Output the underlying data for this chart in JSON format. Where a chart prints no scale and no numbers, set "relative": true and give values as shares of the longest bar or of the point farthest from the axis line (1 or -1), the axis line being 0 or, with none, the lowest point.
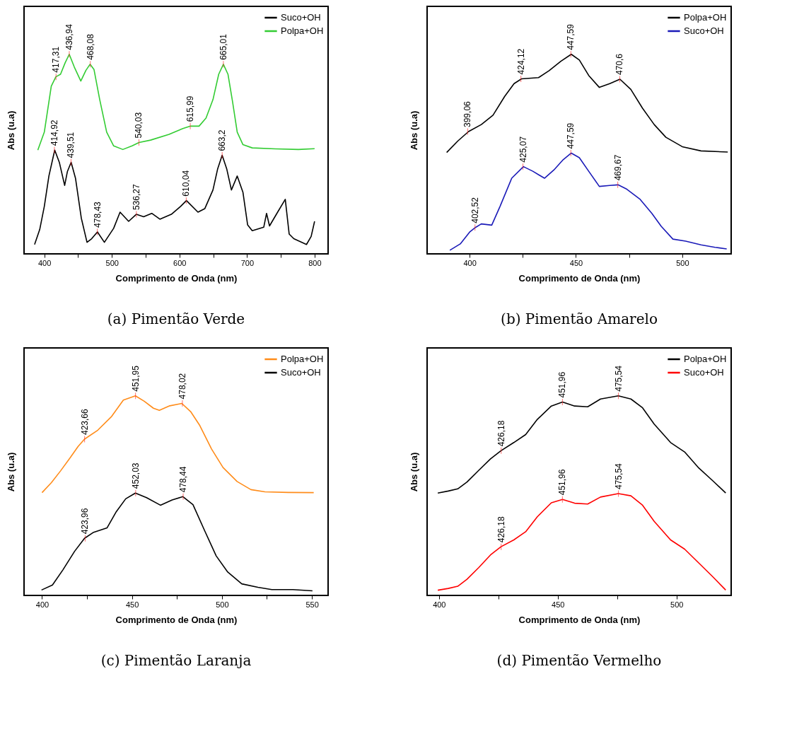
{
  "chart_data": [
    {
      "type": "line",
      "title": "(a) Pimentão Verde",
      "xlabel": "Comprimento de Onda (nm)",
      "ylabel": "Abs (u.a)",
      "relative": true,
      "legend": "top right",
      "xlim": [
        370,
        820
      ],
      "xticks": [
        400,
        500,
        600,
        700,
        800,
        {
          "value": 450,
          "label": null
        },
        {
          "value": 550,
          "label": null
        },
        {
          "value": 650,
          "label": null
        },
        {
          "value": 750,
          "label": null
        }
      ],
      "series": [
        {
          "name": "Suco+OH",
          "color": "#000000",
          "x": [
            385.6,
            393.2,
            400,
            406.8,
            415.4,
            422.2,
            430.1,
            434.2,
            439.7,
            446.2,
            454.7,
            463.2,
            470.1,
            478.6,
            488.9,
            502.6,
            512.1,
            524.8,
            536.1,
            547,
            559,
            571,
            588,
            601.7,
            610.3,
            627.4,
            637.6,
            649.6,
            656.4,
            663.2,
            670.1,
            676.9,
            685.5,
            694,
            700.9,
            707.7,
            724.8,
            728.9,
            733.3,
            745.3,
            756.6,
            762.4,
            769.2,
            788,
            794.9,
            800
          ],
          "values": [
            0.047,
            0.122,
            0.238,
            0.39,
            0.52,
            0.459,
            0.343,
            0.413,
            0.459,
            0.378,
            0.18,
            0.058,
            0.076,
            0.11,
            0.058,
            0.128,
            0.209,
            0.163,
            0.198,
            0.186,
            0.203,
            0.174,
            0.198,
            0.238,
            0.267,
            0.209,
            0.227,
            0.32,
            0.424,
            0.494,
            0.424,
            0.32,
            0.39,
            0.308,
            0.145,
            0.116,
            0.134,
            0.203,
            0.14,
            0.209,
            0.273,
            0.099,
            0.076,
            0.047,
            0.087,
            0.163
          ]
        },
        {
          "name": "Polpa+OH",
          "color": "#33cc33",
          "x": [
            390.4,
            400,
            410.3,
            417.1,
            424,
            430.8,
            436.9,
            444.4,
            454,
            461.5,
            467.7,
            473.5,
            482,
            492.3,
            502.6,
            516.2,
            529.9,
            540.2,
            557.3,
            584.6,
            605.1,
            616.4,
            629,
            639.3,
            649.6,
            658.1,
            665,
            671.8,
            678.6,
            685.5,
            694,
            707.7,
            741.9,
            776.1,
            800
          ],
          "values": [
            0.52,
            0.61,
            0.84,
            0.887,
            0.9,
            0.957,
            1.0,
            0.936,
            0.866,
            0.919,
            0.95,
            0.924,
            0.773,
            0.61,
            0.541,
            0.523,
            0.541,
            0.558,
            0.57,
            0.599,
            0.628,
            0.64,
            0.64,
            0.68,
            0.773,
            0.9,
            0.95,
            0.9,
            0.762,
            0.61,
            0.547,
            0.531,
            0.526,
            0.523,
            0.527
          ]
        }
      ],
      "annotations": [
        {
          "text": "417,31",
          "x": 417.31,
          "y": 0.887
        },
        {
          "text": "436,94",
          "x": 436.94,
          "y": 1.0
        },
        {
          "text": "468,08",
          "x": 468.08,
          "y": 0.95
        },
        {
          "text": "540,03",
          "x": 540.03,
          "y": 0.558
        },
        {
          "text": "615,99",
          "x": 615.99,
          "y": 0.64
        },
        {
          "text": "665,01",
          "x": 665.01,
          "y": 0.95
        },
        {
          "text": "414,92",
          "x": 414.92,
          "y": 0.52
        },
        {
          "text": "439,51",
          "x": 439.51,
          "y": 0.459
        },
        {
          "text": "478,43",
          "x": 478.43,
          "y": 0.11
        },
        {
          "text": "536,27",
          "x": 536.27,
          "y": 0.198
        },
        {
          "text": "610,04",
          "x": 610.04,
          "y": 0.267
        },
        {
          "text": "663,2",
          "x": 663.2,
          "y": 0.494
        }
      ]
    },
    {
      "type": "line",
      "title": "(b) Pimentão Amarelo",
      "xlabel": "Comprimento de Onda (nm)",
      "ylabel": "Abs (u.a)",
      "relative": true,
      "legend": "top right",
      "xlim": [
        380,
        523
      ],
      "xticks": [
        400,
        450,
        500,
        {
          "value": 425,
          "label": null
        },
        {
          "value": 475,
          "label": null
        }
      ],
      "series": [
        {
          "name": "Polpa+OH",
          "color": "#000000",
          "x": [
            389.2,
            394.5,
            399.5,
            405.5,
            411,
            416.5,
            420.9,
            424.4,
            432.4,
            437.4,
            442.9,
            447.8,
            451.6,
            456,
            461,
            465.9,
            470.7,
            475.8,
            481.3,
            486.8,
            492.3,
            500,
            508.8,
            521.4
          ],
          "values": [
            0.508,
            0.566,
            0.613,
            0.648,
            0.695,
            0.789,
            0.853,
            0.877,
            0.883,
            0.918,
            0.965,
            1.0,
            0.971,
            0.894,
            0.834,
            0.853,
            0.875,
            0.824,
            0.73,
            0.648,
            0.584,
            0.537,
            0.516,
            0.51
          ]
        },
        {
          "name": "Suco+OH",
          "color": "#1a1ab8",
          "x": [
            390.7,
            395.6,
            400,
            402.7,
            405.5,
            410.4,
            414.3,
            419.8,
            425.3,
            429.7,
            435.2,
            439.6,
            444,
            447.8,
            451.6,
            456,
            461,
            465.9,
            469.8,
            473.6,
            480.2,
            485.7,
            490.1,
            495.6,
            501.6,
            508.8,
            515.4,
            520.9
          ],
          "values": [
            0.018,
            0.05,
            0.109,
            0.132,
            0.15,
            0.144,
            0.238,
            0.379,
            0.437,
            0.414,
            0.379,
            0.42,
            0.472,
            0.505,
            0.482,
            0.414,
            0.338,
            0.343,
            0.346,
            0.326,
            0.273,
            0.203,
            0.138,
            0.074,
            0.064,
            0.045,
            0.033,
            0.025
          ]
        }
      ],
      "annotations": [
        {
          "text": "399,06",
          "x": 399.06,
          "y": 0.613
        },
        {
          "text": "424,12",
          "x": 424.12,
          "y": 0.877
        },
        {
          "text": "447,59",
          "x": 447.59,
          "y": 1.0
        },
        {
          "text": "470,6",
          "x": 470.6,
          "y": 0.875
        },
        {
          "text": "402,52",
          "x": 402.52,
          "y": 0.132
        },
        {
          "text": "425,07",
          "x": 425.07,
          "y": 0.437
        },
        {
          "text": "447,59",
          "x": 447.59,
          "y": 0.505
        },
        {
          "text": "469,67",
          "x": 469.67,
          "y": 0.346
        }
      ]
    },
    {
      "type": "line",
      "title": "(c) Pimentão Laranja",
      "xlabel": "Comprimento de Onda (nm)",
      "ylabel": "Abs (u.a)",
      "relative": true,
      "legend": "top right",
      "xlim": [
        390,
        559
      ],
      "xticks": [
        400,
        450,
        500,
        550,
        {
          "value": 425,
          "label": null
        },
        {
          "value": 475,
          "label": null
        },
        {
          "value": 525,
          "label": null
        }
      ],
      "series": [
        {
          "name": "Polpa+OH",
          "color": "#ff8c1a",
          "x": [
            400,
            405.2,
            410.3,
            415.5,
            420,
            423.6,
            431,
            438.7,
            445.2,
            451.9,
            456.8,
            461.9,
            465.2,
            471,
            477.7,
            482.6,
            487.7,
            494.2,
            500.6,
            508.4,
            516.1,
            523.9,
            536.8,
            551
          ],
          "values": [
            0.515,
            0.565,
            0.624,
            0.688,
            0.746,
            0.783,
            0.828,
            0.897,
            0.979,
            1.0,
            0.973,
            0.938,
            0.927,
            0.95,
            0.962,
            0.921,
            0.851,
            0.734,
            0.641,
            0.571,
            0.53,
            0.519,
            0.516,
            0.515
          ]
        },
        {
          "name": "Suco+OH",
          "color": "#000000",
          "x": [
            399.7,
            405.8,
            411.6,
            418.1,
            423.6,
            428.4,
            436.1,
            441.3,
            446.5,
            451.9,
            458.1,
            465.8,
            472.3,
            478.3,
            483.9,
            490.3,
            496.8,
            503.2,
            511,
            520,
            527.7,
            539.4,
            550.3
          ],
          "values": [
            0.027,
            0.052,
            0.128,
            0.221,
            0.286,
            0.315,
            0.338,
            0.42,
            0.484,
            0.513,
            0.49,
            0.452,
            0.478,
            0.495,
            0.455,
            0.326,
            0.198,
            0.117,
            0.058,
            0.041,
            0.029,
            0.029,
            0.023
          ]
        }
      ],
      "annotations": [
        {
          "text": "423,66",
          "x": 423.66,
          "y": 0.783
        },
        {
          "text": "451,95",
          "x": 451.95,
          "y": 1.0
        },
        {
          "text": "478,02",
          "x": 478.02,
          "y": 0.962
        },
        {
          "text": "423,96",
          "x": 423.96,
          "y": 0.286
        },
        {
          "text": "452,03",
          "x": 452.03,
          "y": 0.513
        },
        {
          "text": "478,44",
          "x": 478.44,
          "y": 0.495
        }
      ]
    },
    {
      "type": "line",
      "title": "(d) Pimentão Vermelho",
      "xlabel": "Comprimento de Onda (nm)",
      "ylabel": "Abs (u.a)",
      "relative": true,
      "legend": "top right",
      "xlim": [
        395,
        523
      ],
      "xticks": [
        400,
        450,
        500,
        {
          "value": 425,
          "label": null
        },
        {
          "value": 475,
          "label": null
        }
      ],
      "series": [
        {
          "name": "Polpa+OH",
          "color": "#000000",
          "x": [
            399.5,
            403.9,
            407.9,
            411.8,
            416.7,
            421.7,
            426.1,
            431.5,
            436.5,
            441.4,
            447.3,
            452,
            457.1,
            462.6,
            468,
            475.5,
            480.8,
            485.7,
            490.6,
            497.5,
            503.4,
            509.4,
            515.3,
            520.7
          ],
          "values": [
            0.513,
            0.523,
            0.534,
            0.568,
            0.626,
            0.684,
            0.725,
            0.766,
            0.806,
            0.882,
            0.949,
            0.969,
            0.949,
            0.945,
            0.984,
            1.0,
            0.984,
            0.94,
            0.858,
            0.766,
            0.719,
            0.638,
            0.574,
            0.513
          ]
        },
        {
          "name": "Suco+OH",
          "color": "#ff0000",
          "x": [
            399.5,
            403.9,
            407.9,
            411.8,
            416.7,
            421.7,
            426.1,
            431.5,
            436.5,
            441.4,
            447.3,
            452,
            457.1,
            462.6,
            468,
            475.5,
            480.8,
            485.7,
            490.6,
            497.5,
            503.4,
            509.4,
            515.3,
            520.7
          ],
          "values": [
            0.026,
            0.035,
            0.046,
            0.081,
            0.139,
            0.203,
            0.244,
            0.278,
            0.319,
            0.394,
            0.464,
            0.481,
            0.462,
            0.458,
            0.493,
            0.51,
            0.499,
            0.452,
            0.371,
            0.278,
            0.232,
            0.162,
            0.093,
            0.027
          ]
        }
      ],
      "annotations": [
        {
          "text": "426,18",
          "x": 426.18,
          "y": 0.725
        },
        {
          "text": "451,96",
          "x": 451.96,
          "y": 0.969
        },
        {
          "text": "475,54",
          "x": 475.54,
          "y": 1.0
        },
        {
          "text": "426,18",
          "x": 426.18,
          "y": 0.244
        },
        {
          "text": "451,96",
          "x": 451.96,
          "y": 0.481
        },
        {
          "text": "475,54",
          "x": 475.54,
          "y": 0.51
        }
      ]
    }
  ]
}
